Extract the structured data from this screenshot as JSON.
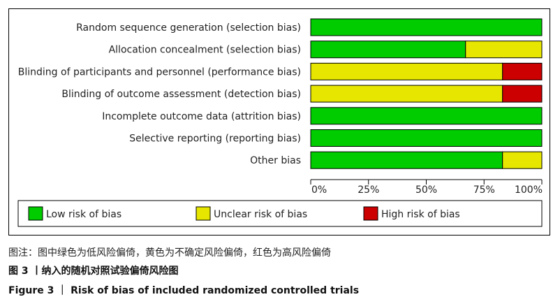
{
  "chart_data": {
    "type": "bar",
    "stacked": true,
    "orientation": "horizontal",
    "categories": [
      "Random sequence generation (selection bias)",
      "Allocation concealment (selection bias)",
      "Blinding of participants and personnel (performance bias)",
      "Blinding of outcome assessment (detection bias)",
      "Incomplete outcome data (attrition bias)",
      "Selective reporting (reporting bias)",
      "Other bias"
    ],
    "series": [
      {
        "name": "Low risk of bias",
        "color": "#00cc00",
        "values": [
          100,
          67,
          0,
          0,
          100,
          100,
          83
        ]
      },
      {
        "name": "Unclear risk of bias",
        "color": "#e6e600",
        "values": [
          0,
          33,
          83,
          83,
          0,
          0,
          17
        ]
      },
      {
        "name": "High risk of bias",
        "color": "#cc0000",
        "values": [
          0,
          0,
          17,
          17,
          0,
          0,
          0
        ]
      }
    ],
    "xlim": [
      0,
      100
    ],
    "xticks": [
      "0%",
      "25%",
      "50%",
      "75%",
      "100%"
    ],
    "legend": "bottom",
    "grid": false
  },
  "caption": {
    "note": "图注：图中绿色为低风险偏倚，黄色为不确定风险偏倚，红色为高风险偏倚",
    "title_cn": "图 3 丨纳入的随机对照试验偏倚风险图",
    "title_en": "Figure 3  ｜  Risk of bias of included randomized controlled trials"
  }
}
